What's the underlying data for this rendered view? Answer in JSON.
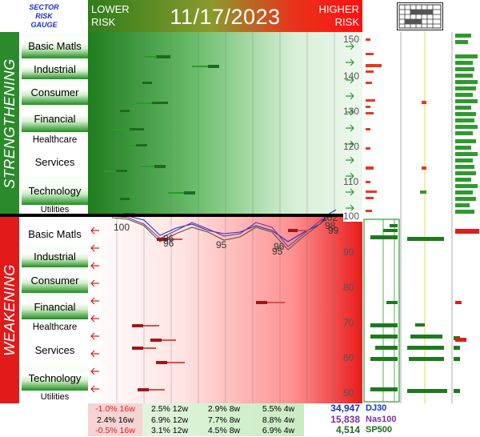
{
  "gauge_title": [
    "SECTOR",
    "RISK",
    "GAUGE"
  ],
  "header": {
    "lower_risk": [
      "LOWER",
      "RISK"
    ],
    "date": "11/17/2023",
    "higher_risk": [
      "HIGHER",
      "RISK"
    ]
  },
  "panels": {
    "strengthening": "STRENGTHENING",
    "weakening": "WEAKENING"
  },
  "sectors_top": [
    "Basic Matls",
    "Industrial",
    "Consumer",
    "Financial",
    "Healthcare",
    "Services",
    "Technology",
    "Utilities"
  ],
  "sectors_bottom": [
    "Basic Matls",
    "Industrial",
    "Consumer",
    "Financial",
    "Healthcare",
    "Services",
    "Technology",
    "Utilities"
  ],
  "y_ticks_top": [
    "150",
    "140",
    "130",
    "120",
    "110",
    "100"
  ],
  "y_ticks_bottom": [
    "90",
    "80",
    "70",
    "60",
    "50"
  ],
  "plot_labels": [
    "100",
    "96",
    "96",
    "95",
    "95",
    "96",
    "98",
    "99",
    "102"
  ],
  "colors": {
    "green": "#2b8a2b",
    "red": "#e31a1a",
    "dj30": "#1c2fc2",
    "nas100": "#7a2fa8",
    "sp500": "#1d6b1d"
  },
  "footer": {
    "rows": [
      {
        "cells": [
          "-1.0% 16w",
          "2.5% 12w",
          "2.9% 8w",
          "5.5% 4w"
        ],
        "value": "34,947",
        "name": "DJ30"
      },
      {
        "cells": [
          "2.4% 16w",
          "6.9% 12w",
          "7.7% 8w",
          "8.8% 4w"
        ],
        "value": "15,838",
        "name": "Nas100"
      },
      {
        "cells": [
          "-0.5% 16w",
          "3.1% 12w",
          "4.5% 8w",
          "6.9% 4w"
        ],
        "value": "4,514",
        "name": "SP500"
      }
    ]
  },
  "icons": {
    "calendar": "calendar-icon",
    "arrow_right": "arrow-right-icon",
    "arrow_left": "arrow-left-icon"
  }
}
